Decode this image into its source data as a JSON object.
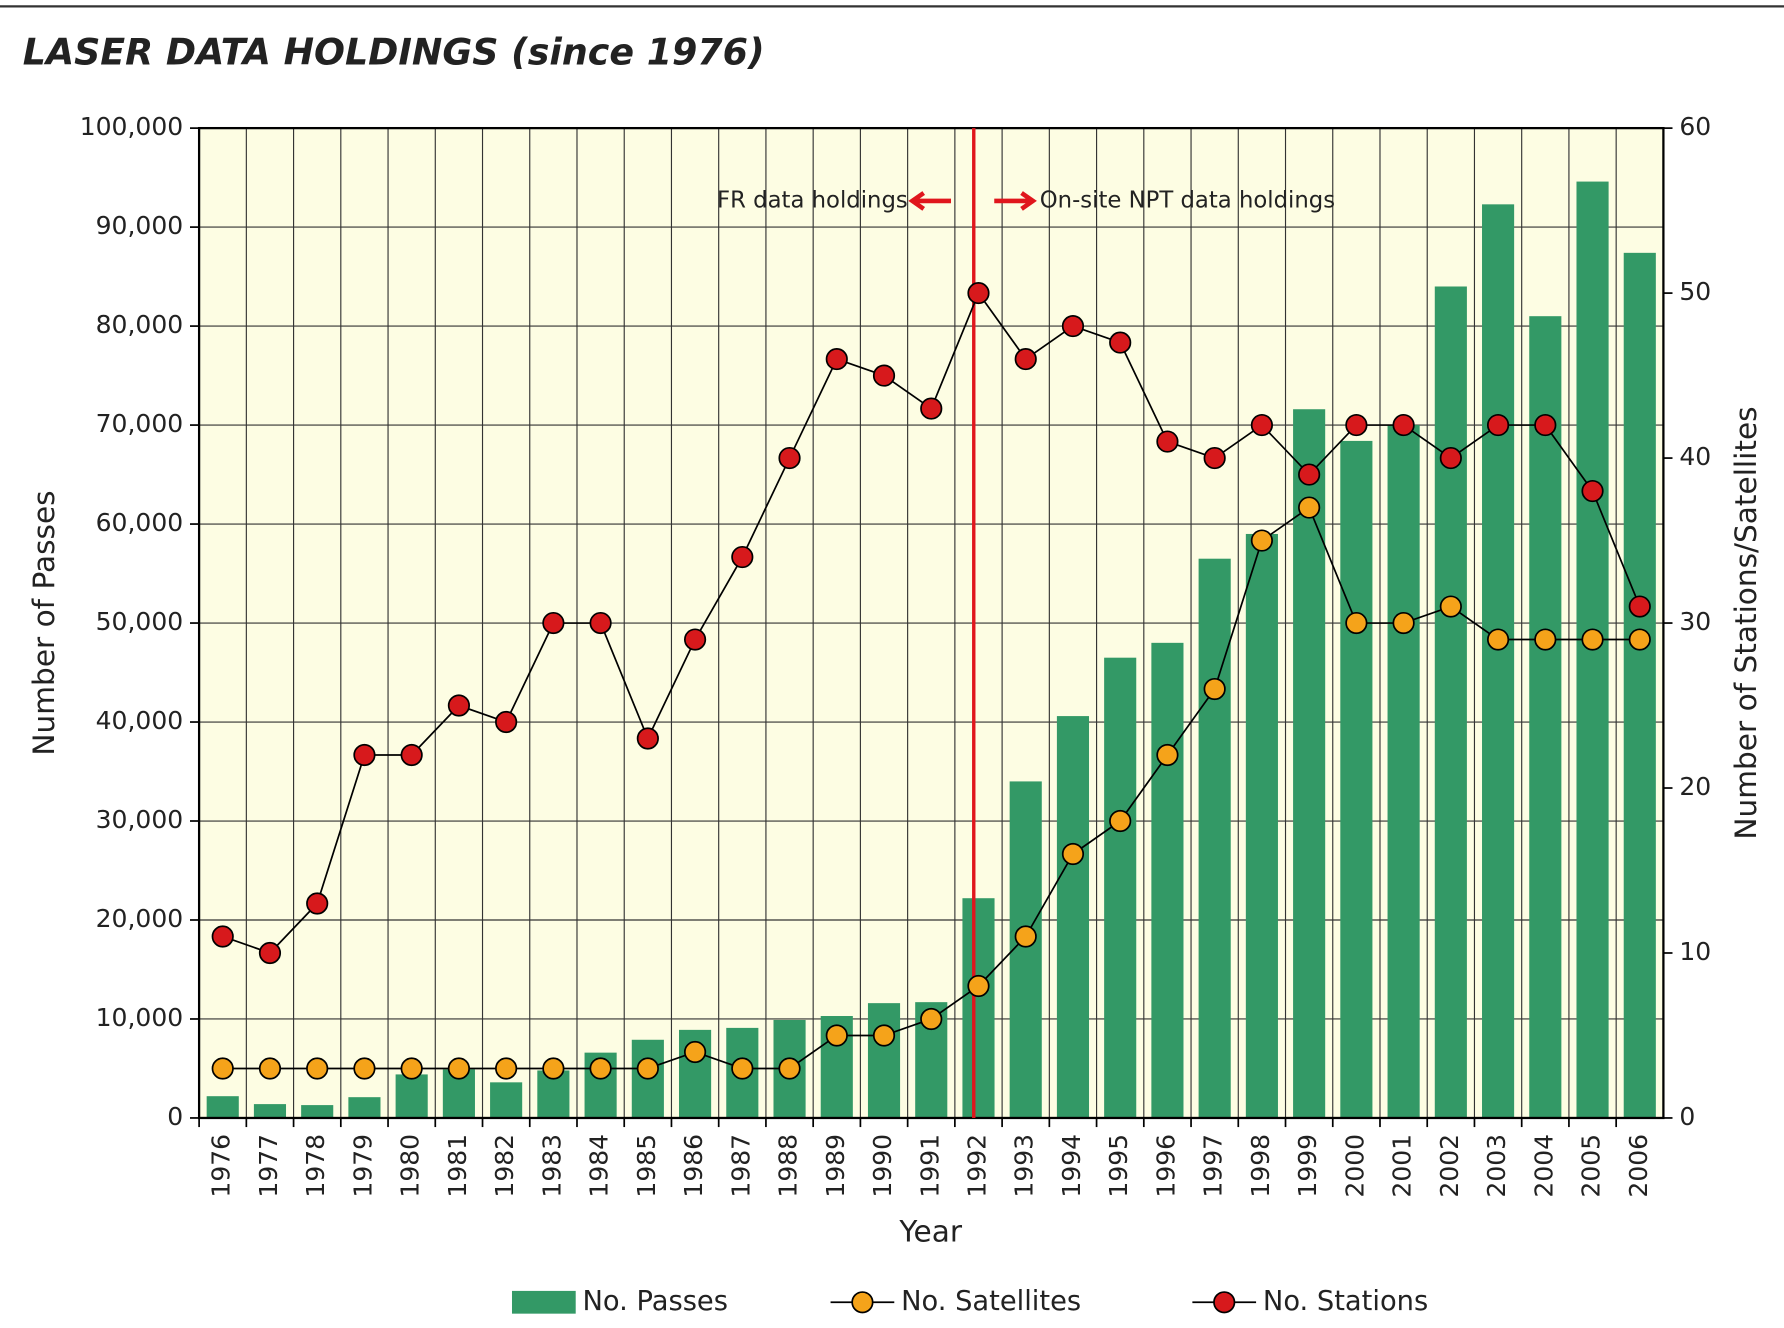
{
  "chart_data": {
    "type": "bar_line",
    "title": "LASER DATA HOLDINGS (since 1976)",
    "x_label": "Year",
    "y_label": "Number of Passes",
    "y2_label": "Number of Stations/Satellites",
    "annotations": [
      "FR data holdings",
      "On-site NPT data holdings"
    ],
    "categories": [
      "1976",
      "1977",
      "1978",
      "1979",
      "1980",
      "1981",
      "1982",
      "1983",
      "1984",
      "1985",
      "1986",
      "1987",
      "1988",
      "1989",
      "1990",
      "1991",
      "1992",
      "1993",
      "1994",
      "1995",
      "1996",
      "1997",
      "1998",
      "1999",
      "2000",
      "2001",
      "2002",
      "2003",
      "2004",
      "2005",
      "2006"
    ],
    "series": [
      {
        "name": "No. Passes",
        "color": "#339966",
        "values": [
          2200,
          1400,
          1300,
          2100,
          4400,
          4900,
          3600,
          4800,
          6600,
          7900,
          8900,
          9100,
          9900,
          10300,
          11600,
          11700,
          22200,
          34000,
          40600,
          46500,
          48000,
          56500,
          59000,
          71600,
          68400,
          70000,
          84000,
          92300,
          81000,
          94600,
          87400
        ]
      },
      {
        "name": "No. Satellites",
        "color": "#f5a31a",
        "axis": "y2",
        "values": [
          3,
          3,
          3,
          3,
          3,
          3,
          3,
          3,
          3,
          3,
          4,
          3,
          3,
          5,
          5,
          6,
          8,
          11,
          16,
          18,
          22,
          26,
          35,
          37,
          30,
          30,
          31,
          29,
          29,
          29,
          29
        ]
      },
      {
        "name": "No. Stations",
        "color": "#d7191c",
        "axis": "y2",
        "values": [
          11,
          10,
          13,
          22,
          22,
          25,
          24,
          30,
          30,
          23,
          29,
          34,
          40,
          46,
          45,
          43,
          50,
          46,
          48,
          47,
          41,
          40,
          42,
          39,
          42,
          42,
          40,
          42,
          42,
          38,
          31
        ]
      }
    ],
    "ylim": [
      0,
      100000
    ],
    "yticks": [
      0,
      {
        "value": 10000,
        "label": "10,000"
      },
      {
        "value": 20000,
        "label": "20,000"
      },
      {
        "value": 30000,
        "label": "30,000"
      },
      {
        "value": 40000,
        "label": "40,000"
      },
      {
        "value": 50000,
        "label": "50,000"
      },
      {
        "value": 60000,
        "label": "60,000"
      },
      {
        "value": 70000,
        "label": "70,000"
      },
      {
        "value": 80000,
        "label": "80,000"
      },
      {
        "value": 90000,
        "label": "90,000"
      },
      {
        "value": 100000,
        "label": "100,000"
      }
    ],
    "y2lim": [
      0,
      60
    ],
    "y2ticks": [
      0,
      10,
      20,
      30,
      40,
      50,
      60
    ],
    "grid": true,
    "legend": "bottom"
  }
}
